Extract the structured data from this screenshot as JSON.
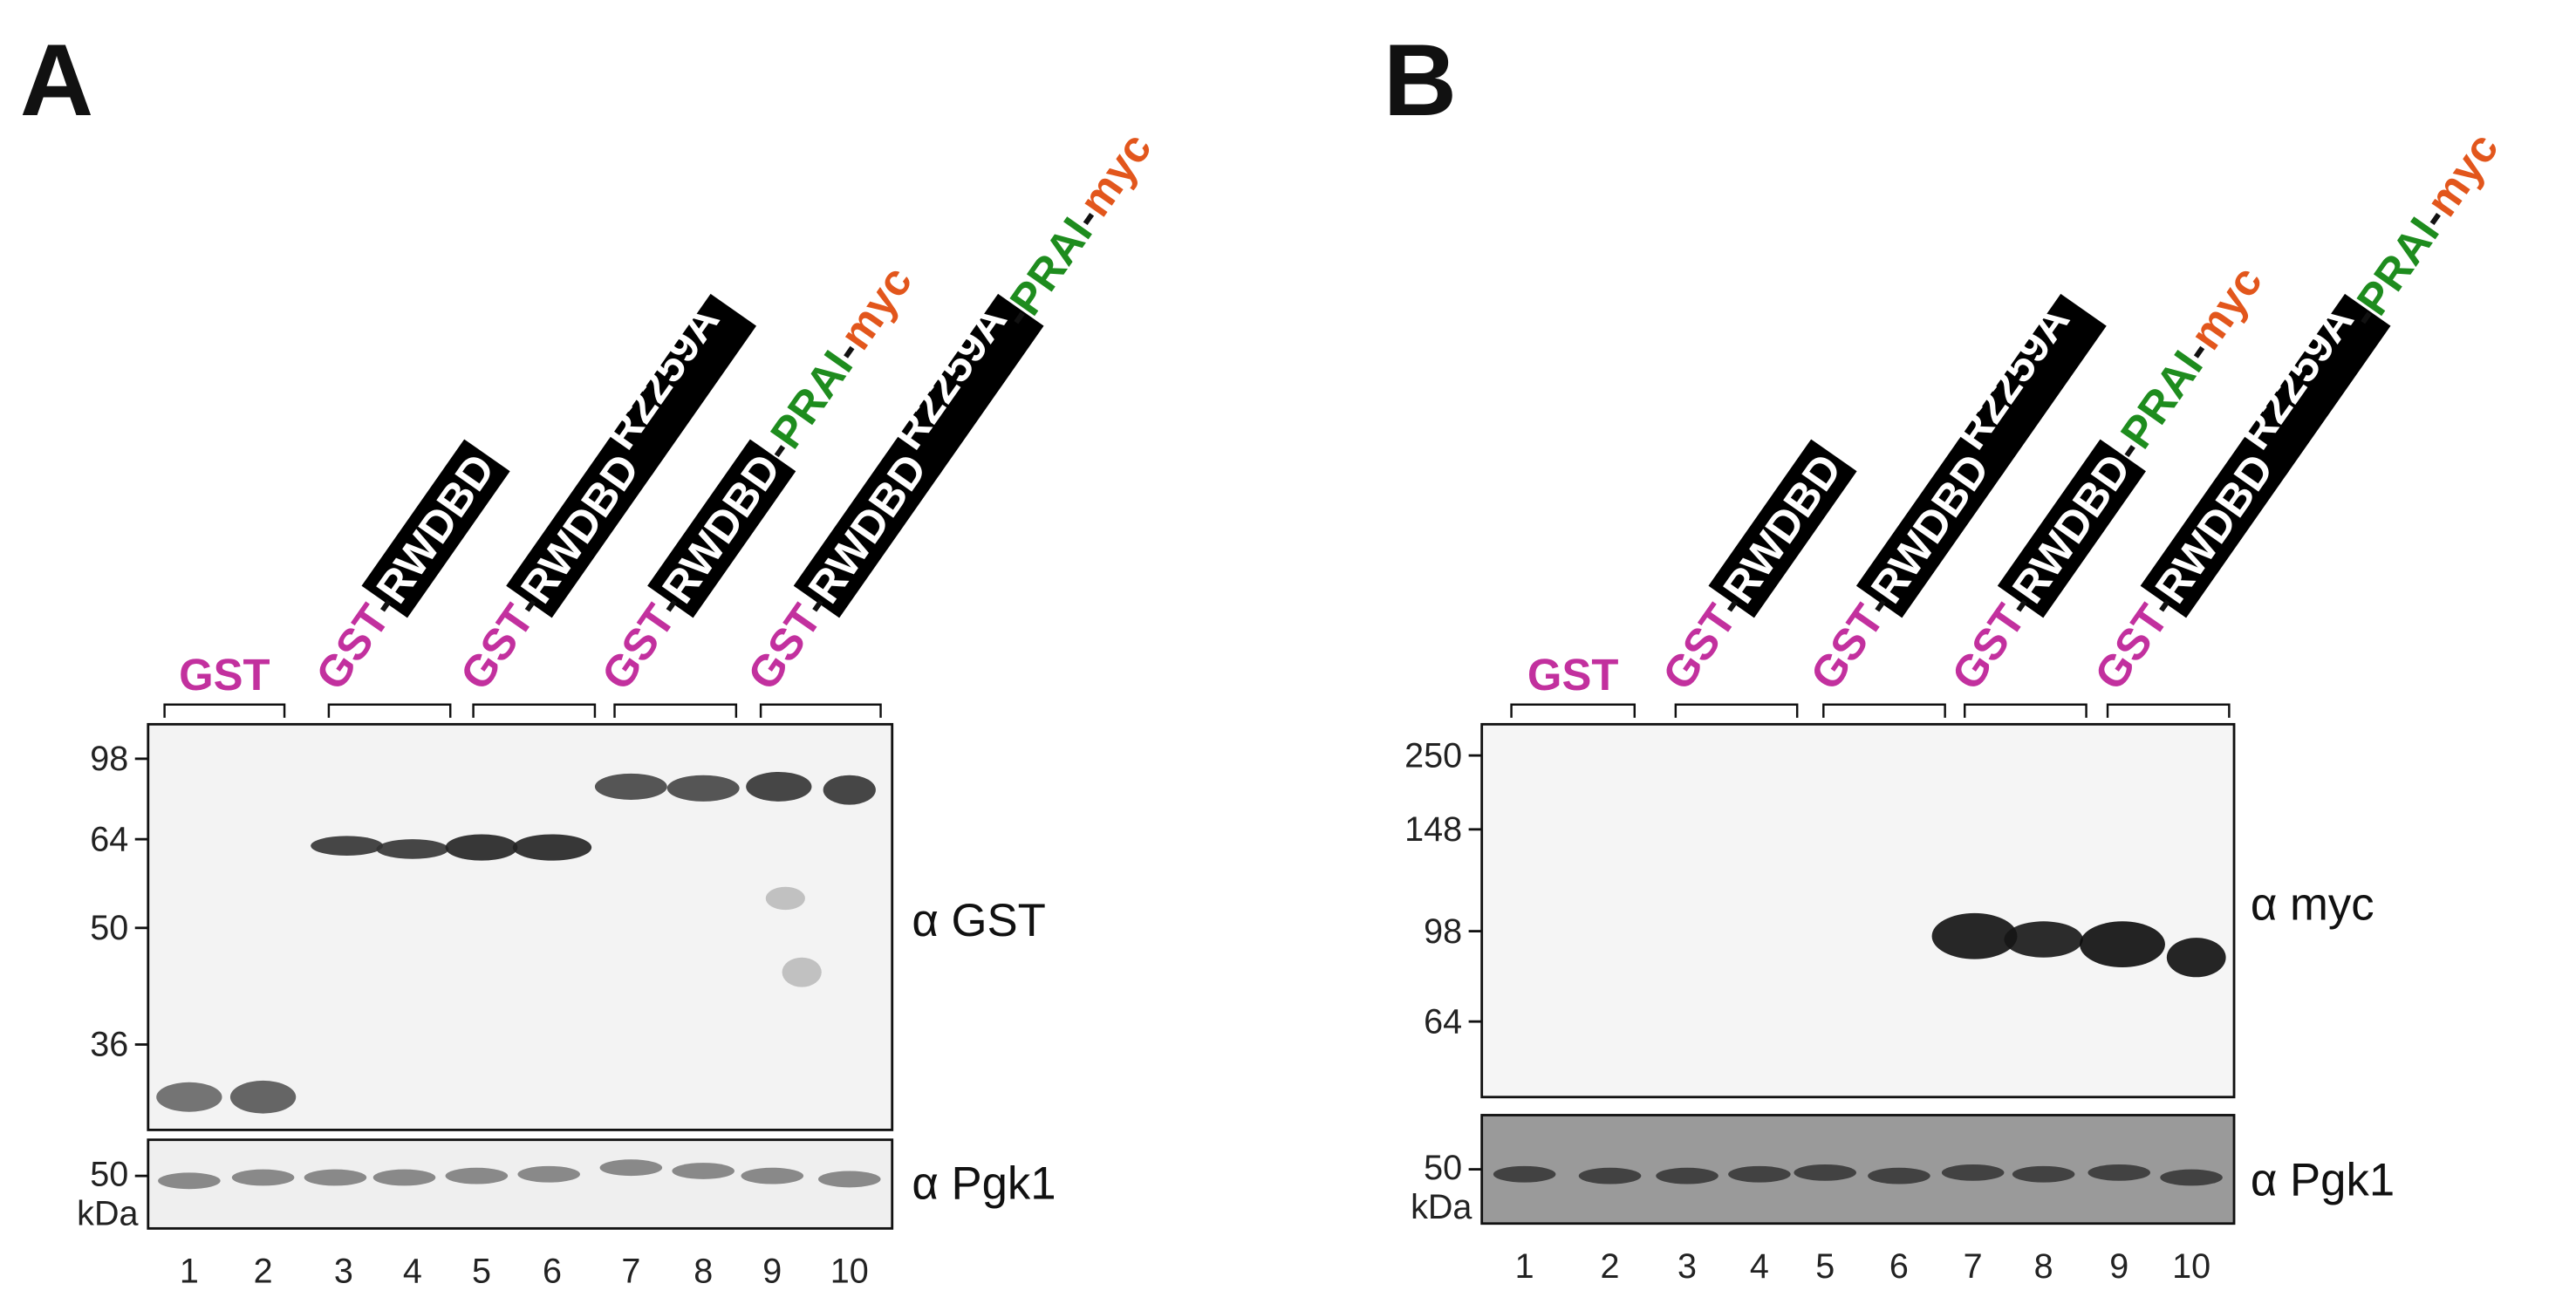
{
  "panels": [
    {
      "label": "A",
      "constructs": [
        {
          "parts": [
            {
              "text": "GST",
              "style": "gst"
            }
          ]
        },
        {
          "parts": [
            {
              "text": "GST",
              "style": "gst"
            },
            {
              "text": "-",
              "style": "plain"
            },
            {
              "text": "RWDBD",
              "style": "box"
            }
          ]
        },
        {
          "parts": [
            {
              "text": "GST",
              "style": "gst"
            },
            {
              "text": "-",
              "style": "plain"
            },
            {
              "text": "RWDBD",
              "style": "box"
            },
            {
              "text": "R2259A",
              "style": "boxsup"
            }
          ]
        },
        {
          "parts": [
            {
              "text": "GST",
              "style": "gst"
            },
            {
              "text": "-",
              "style": "plain"
            },
            {
              "text": "RWDBD",
              "style": "box"
            },
            {
              "text": "-",
              "style": "plain"
            },
            {
              "text": "PRAI",
              "style": "prai"
            },
            {
              "text": "-",
              "style": "plain"
            },
            {
              "text": "myc",
              "style": "myc"
            }
          ]
        },
        {
          "parts": [
            {
              "text": "GST",
              "style": "gst"
            },
            {
              "text": "-",
              "style": "plain"
            },
            {
              "text": "RWDBD",
              "style": "box"
            },
            {
              "text": "R2259A",
              "style": "boxsup"
            },
            {
              "text": "-",
              "style": "plain"
            },
            {
              "text": "PRAI",
              "style": "prai"
            },
            {
              "text": "-",
              "style": "plain"
            },
            {
              "text": "myc",
              "style": "myc"
            }
          ]
        }
      ],
      "markers": [
        98,
        64,
        50,
        36
      ],
      "loading_marker": 50,
      "unit": "kDa",
      "antibody": "α GST",
      "loading_antibody": "α Pgk1",
      "lanes": [
        1,
        2,
        3,
        4,
        5,
        6,
        7,
        8,
        9,
        10
      ]
    },
    {
      "label": "B",
      "constructs": [
        {
          "parts": [
            {
              "text": "GST",
              "style": "gst"
            }
          ]
        },
        {
          "parts": [
            {
              "text": "GST",
              "style": "gst"
            },
            {
              "text": "-",
              "style": "plain"
            },
            {
              "text": "RWDBD",
              "style": "box"
            }
          ]
        },
        {
          "parts": [
            {
              "text": "GST",
              "style": "gst"
            },
            {
              "text": "-",
              "style": "plain"
            },
            {
              "text": "RWDBD",
              "style": "box"
            },
            {
              "text": "R2259A",
              "style": "boxsup"
            }
          ]
        },
        {
          "parts": [
            {
              "text": "GST",
              "style": "gst"
            },
            {
              "text": "-",
              "style": "plain"
            },
            {
              "text": "RWDBD",
              "style": "box"
            },
            {
              "text": "-",
              "style": "plain"
            },
            {
              "text": "PRAI",
              "style": "prai"
            },
            {
              "text": "-",
              "style": "plain"
            },
            {
              "text": "myc",
              "style": "myc"
            }
          ]
        },
        {
          "parts": [
            {
              "text": "GST",
              "style": "gst"
            },
            {
              "text": "-",
              "style": "plain"
            },
            {
              "text": "RWDBD",
              "style": "box"
            },
            {
              "text": "R2259A",
              "style": "boxsup"
            },
            {
              "text": "-",
              "style": "plain"
            },
            {
              "text": "PRAI",
              "style": "prai"
            },
            {
              "text": "-",
              "style": "plain"
            },
            {
              "text": "myc",
              "style": "myc"
            }
          ]
        }
      ],
      "markers": [
        250,
        148,
        98,
        64
      ],
      "loading_marker": 50,
      "unit": "kDa",
      "antibody": "α myc",
      "loading_antibody": "α Pgk1",
      "lanes": [
        1,
        2,
        3,
        4,
        5,
        6,
        7,
        8,
        9,
        10
      ]
    }
  ]
}
